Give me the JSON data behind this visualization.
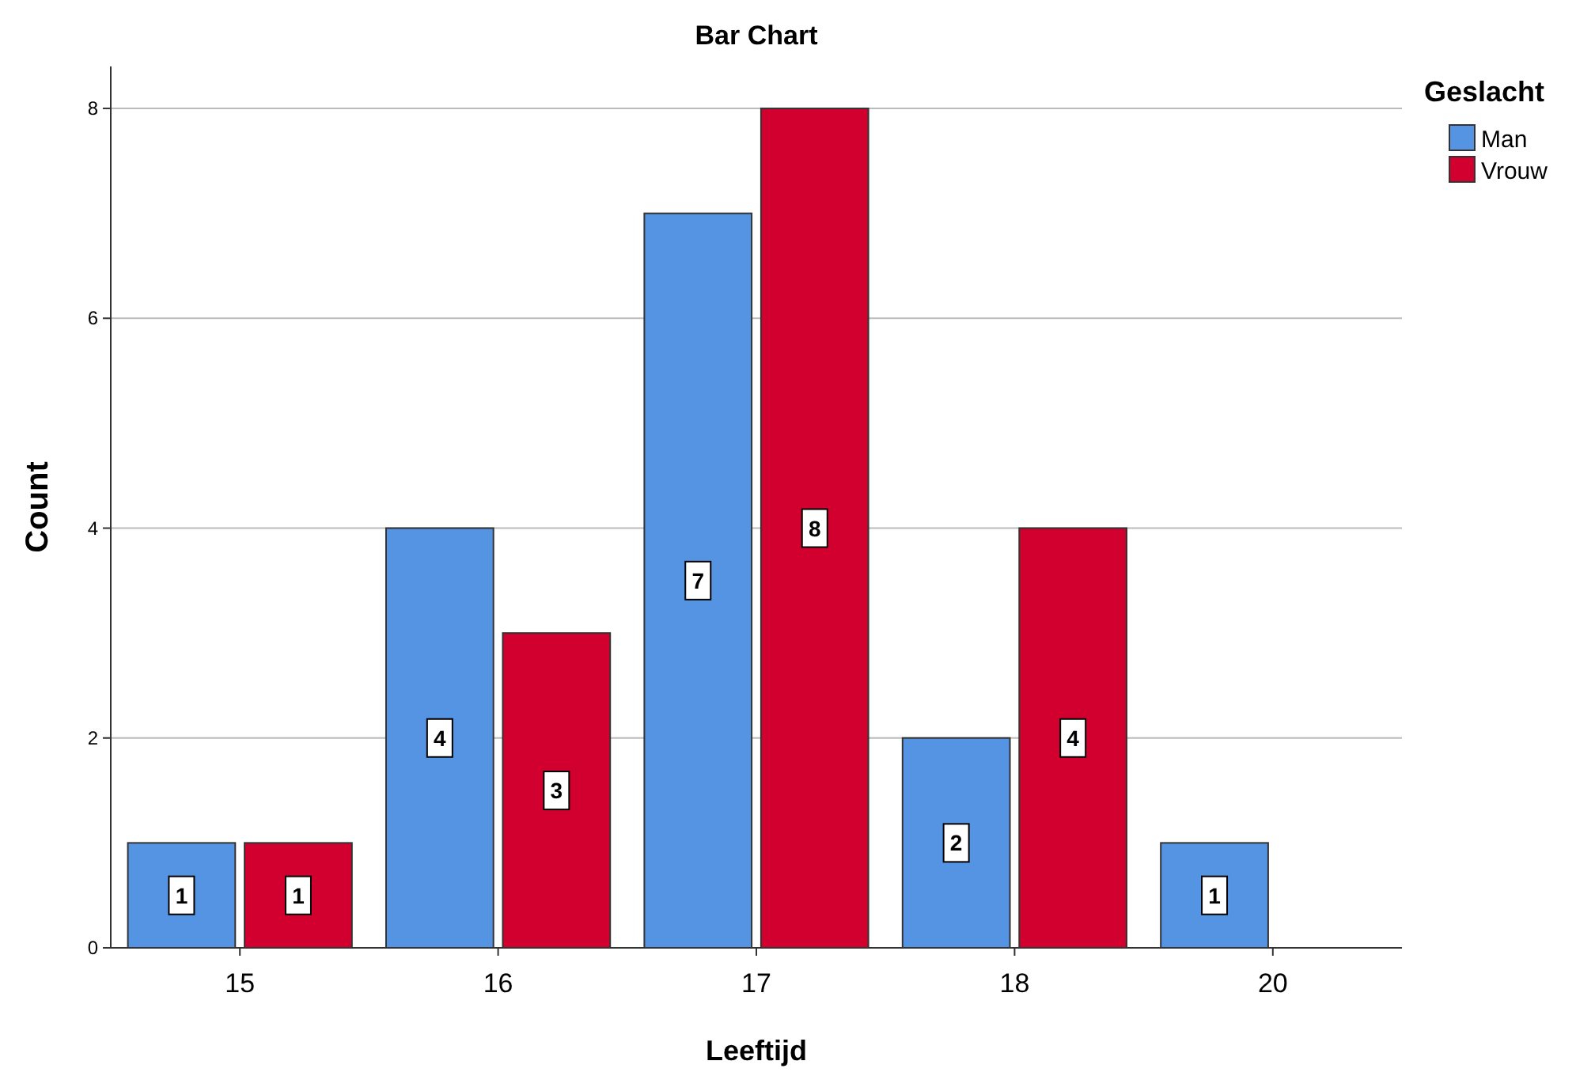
{
  "chart_data": {
    "type": "bar",
    "title": "Bar Chart",
    "xlabel": "Leeftijd",
    "ylabel": "Count",
    "legend_title": "Geslacht",
    "categories": [
      "15",
      "16",
      "17",
      "18",
      "20"
    ],
    "series": [
      {
        "name": "Man",
        "color": "#5593e3",
        "values": [
          1,
          4,
          7,
          2,
          1
        ]
      },
      {
        "name": "Vrouw",
        "color": "#d2002e",
        "values": [
          1,
          3,
          8,
          4,
          null
        ]
      }
    ],
    "ylim": [
      0,
      8.4
    ],
    "yticks": [
      0,
      2,
      4,
      6,
      8
    ],
    "grid": "y",
    "legend": "top right",
    "data_labels": true
  }
}
